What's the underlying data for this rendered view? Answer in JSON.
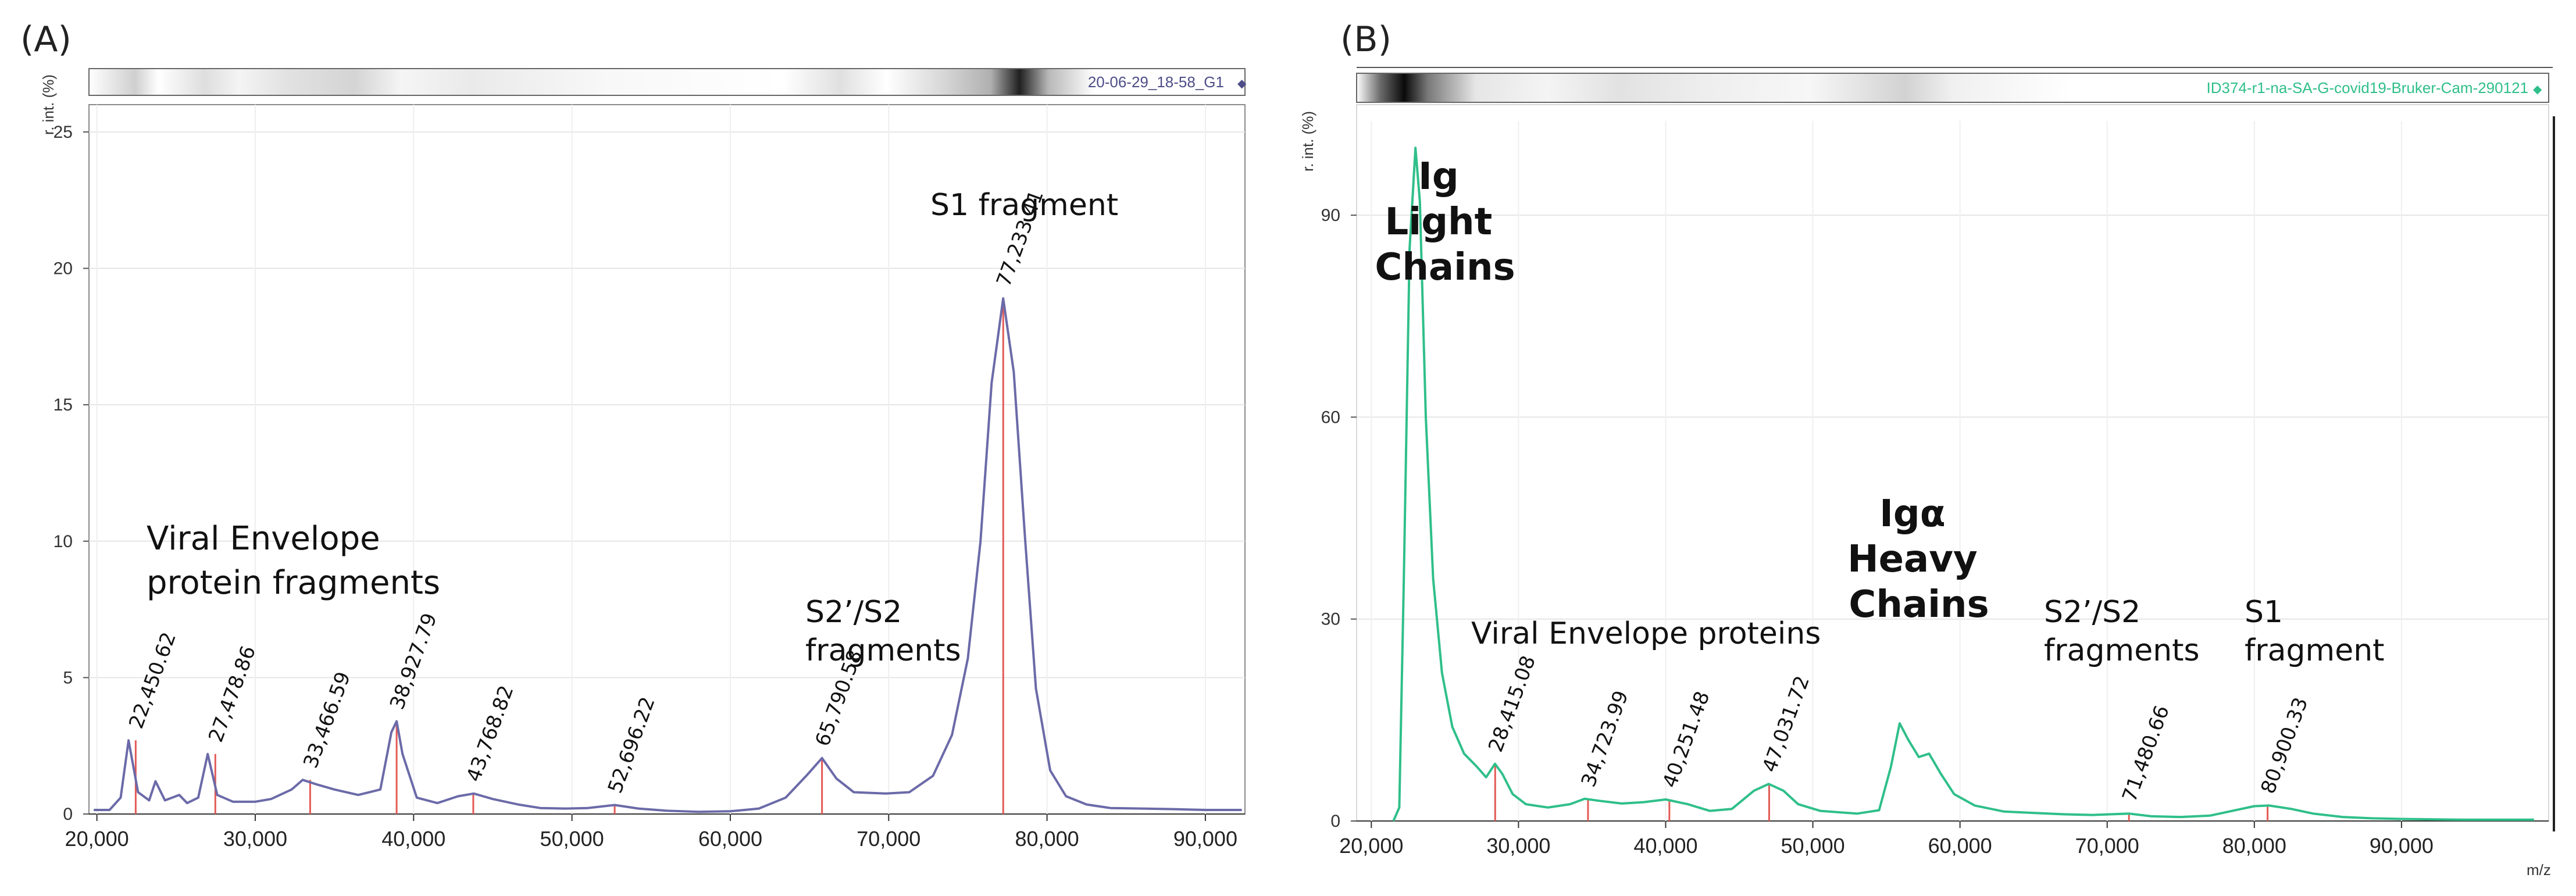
{
  "chart_data": [
    {
      "panel": "(A)",
      "type": "line",
      "file_label": "20-06-29_18-58_G1",
      "ylabel": "r. int. (%)",
      "xlabel": "",
      "xlim": [
        19500,
        92500
      ],
      "ylim": [
        0,
        26
      ],
      "xticks": [
        20000,
        30000,
        40000,
        50000,
        60000,
        70000,
        80000,
        90000
      ],
      "xtick_labels": [
        "20,000",
        "30,000",
        "40,000",
        "50,000",
        "60,000",
        "70,000",
        "80,000",
        "90,000"
      ],
      "yticks": [
        0,
        5,
        10,
        15,
        20,
        25
      ],
      "ytick_labels": [
        "0",
        "5",
        "10",
        "15",
        "20",
        "25"
      ],
      "line_color": "#6b6aa8",
      "peak_marker_color": "#e35a55",
      "spectrum": [
        [
          19800,
          0.15
        ],
        [
          20800,
          0.15
        ],
        [
          21500,
          0.6
        ],
        [
          22000,
          2.7
        ],
        [
          22600,
          0.8
        ],
        [
          23300,
          0.5
        ],
        [
          23700,
          1.2
        ],
        [
          24300,
          0.5
        ],
        [
          25200,
          0.7
        ],
        [
          25700,
          0.4
        ],
        [
          26400,
          0.6
        ],
        [
          27000,
          2.2
        ],
        [
          27600,
          0.7
        ],
        [
          28600,
          0.45
        ],
        [
          30000,
          0.45
        ],
        [
          31000,
          0.55
        ],
        [
          32300,
          0.9
        ],
        [
          33000,
          1.25
        ],
        [
          33800,
          1.1
        ],
        [
          35000,
          0.9
        ],
        [
          36500,
          0.7
        ],
        [
          37900,
          0.9
        ],
        [
          38600,
          3.0
        ],
        [
          38930,
          3.4
        ],
        [
          39300,
          2.2
        ],
        [
          40200,
          0.6
        ],
        [
          41500,
          0.4
        ],
        [
          42800,
          0.65
        ],
        [
          43800,
          0.75
        ],
        [
          45000,
          0.55
        ],
        [
          46600,
          0.35
        ],
        [
          48000,
          0.22
        ],
        [
          49600,
          0.2
        ],
        [
          51000,
          0.22
        ],
        [
          52700,
          0.33
        ],
        [
          54200,
          0.2
        ],
        [
          56000,
          0.12
        ],
        [
          58000,
          0.08
        ],
        [
          60000,
          0.1
        ],
        [
          61800,
          0.2
        ],
        [
          63500,
          0.6
        ],
        [
          64800,
          1.4
        ],
        [
          65790,
          2.05
        ],
        [
          66700,
          1.3
        ],
        [
          67800,
          0.8
        ],
        [
          69800,
          0.75
        ],
        [
          71300,
          0.8
        ],
        [
          72800,
          1.4
        ],
        [
          74000,
          2.9
        ],
        [
          75000,
          5.7
        ],
        [
          75800,
          10.0
        ],
        [
          76500,
          15.8
        ],
        [
          77230,
          18.9
        ],
        [
          77900,
          16.2
        ],
        [
          78600,
          10.2
        ],
        [
          79300,
          4.6
        ],
        [
          80200,
          1.6
        ],
        [
          81200,
          0.65
        ],
        [
          82500,
          0.35
        ],
        [
          84000,
          0.22
        ],
        [
          86000,
          0.2
        ],
        [
          88000,
          0.18
        ],
        [
          90000,
          0.15
        ],
        [
          92300,
          0.15
        ]
      ],
      "peaks": [
        {
          "x": 22450.62,
          "label": "22,450.62",
          "y": 2.7
        },
        {
          "x": 27478.86,
          "label": "27,478.86",
          "y": 2.2
        },
        {
          "x": 33466.59,
          "label": "33,466.59",
          "y": 1.25
        },
        {
          "x": 38927.79,
          "label": "38,927.79",
          "y": 3.4
        },
        {
          "x": 43768.82,
          "label": "43,768.82",
          "y": 0.75
        },
        {
          "x": 52696.22,
          "label": "52,696.22",
          "y": 0.33
        },
        {
          "x": 65790.58,
          "label": "65,790.58",
          "y": 2.05
        },
        {
          "x": 77233.41,
          "label": "77,233.41",
          "y": 18.9
        }
      ],
      "annotations": [
        {
          "lines": [
            "Viral Envelope",
            "protein fragments"
          ],
          "weight": "normal"
        },
        {
          "lines": [
            "S2’/S2",
            "fragments"
          ],
          "weight": "normal"
        },
        {
          "lines": [
            "S1 fragment"
          ],
          "weight": "normal"
        }
      ]
    },
    {
      "panel": "(B)",
      "type": "line",
      "file_label": "ID374-r1-na-SA-G-covid19-Bruker-Cam-290121",
      "ylabel": "r. int. (%)",
      "xlabel": "m/z",
      "xlim": [
        19000,
        100000
      ],
      "ylim": [
        0,
        104
      ],
      "xticks": [
        20000,
        30000,
        40000,
        50000,
        60000,
        70000,
        80000,
        90000
      ],
      "xtick_labels": [
        "20,000",
        "30,000",
        "40,000",
        "50,000",
        "60,000",
        "70,000",
        "80,000",
        "90,000"
      ],
      "yticks": [
        0,
        30,
        60,
        90
      ],
      "ytick_labels": [
        "0",
        "30",
        "60",
        "90"
      ],
      "line_color": "#2fbf8a",
      "peak_marker_color": "#e35a55",
      "spectrum": [
        [
          21500,
          0
        ],
        [
          21900,
          2
        ],
        [
          22200,
          35
        ],
        [
          22600,
          85
        ],
        [
          23000,
          100
        ],
        [
          23300,
          92
        ],
        [
          23700,
          60
        ],
        [
          24200,
          36
        ],
        [
          24800,
          22
        ],
        [
          25500,
          14
        ],
        [
          26300,
          10
        ],
        [
          27200,
          8
        ],
        [
          27800,
          6.5
        ],
        [
          28400,
          8.5
        ],
        [
          28900,
          7
        ],
        [
          29600,
          4
        ],
        [
          30500,
          2.5
        ],
        [
          32000,
          2
        ],
        [
          33500,
          2.5
        ],
        [
          34500,
          3.3
        ],
        [
          35500,
          3
        ],
        [
          37000,
          2.6
        ],
        [
          38500,
          2.8
        ],
        [
          40000,
          3.2
        ],
        [
          41500,
          2.5
        ],
        [
          43000,
          1.5
        ],
        [
          44500,
          1.8
        ],
        [
          46000,
          4.5
        ],
        [
          47000,
          5.5
        ],
        [
          48000,
          4.5
        ],
        [
          49000,
          2.5
        ],
        [
          50500,
          1.5
        ],
        [
          53000,
          1.1
        ],
        [
          54500,
          1.6
        ],
        [
          55300,
          8
        ],
        [
          55900,
          14.5
        ],
        [
          56500,
          12
        ],
        [
          57200,
          9.5
        ],
        [
          57900,
          10
        ],
        [
          58700,
          7
        ],
        [
          59600,
          4
        ],
        [
          61000,
          2.3
        ],
        [
          63000,
          1.4
        ],
        [
          65000,
          1.2
        ],
        [
          67000,
          1
        ],
        [
          69000,
          0.9
        ],
        [
          71500,
          1.1
        ],
        [
          73000,
          0.7
        ],
        [
          75000,
          0.6
        ],
        [
          77000,
          0.8
        ],
        [
          78500,
          1.5
        ],
        [
          80000,
          2.2
        ],
        [
          81000,
          2.3
        ],
        [
          82500,
          1.8
        ],
        [
          84000,
          1.1
        ],
        [
          86000,
          0.6
        ],
        [
          88000,
          0.4
        ],
        [
          90000,
          0.3
        ],
        [
          94000,
          0.2
        ],
        [
          99000,
          0.2
        ]
      ],
      "peaks": [
        {
          "x": 28415.08,
          "label": "28,415.08",
          "y": 8.5
        },
        {
          "x": 34723.99,
          "label": "34,723.99",
          "y": 3.3
        },
        {
          "x": 40251.48,
          "label": "40,251.48",
          "y": 3.2
        },
        {
          "x": 47031.72,
          "label": "47,031.72",
          "y": 5.5
        },
        {
          "x": 71480.66,
          "label": "71,480.66",
          "y": 1.1
        },
        {
          "x": 80900.33,
          "label": "80,900.33",
          "y": 2.3
        }
      ],
      "annotations": [
        {
          "lines": [
            "Ig",
            "Light",
            "Chains"
          ],
          "weight": "bold"
        },
        {
          "lines": [
            "Viral Envelope proteins"
          ],
          "weight": "normal"
        },
        {
          "lines": [
            "Igα",
            "Heavy",
            "Chains"
          ],
          "weight": "bold"
        },
        {
          "lines": [
            "S2’/S2",
            "fragments"
          ],
          "weight": "normal"
        },
        {
          "lines": [
            "S1",
            "fragment"
          ],
          "weight": "normal"
        }
      ]
    }
  ]
}
